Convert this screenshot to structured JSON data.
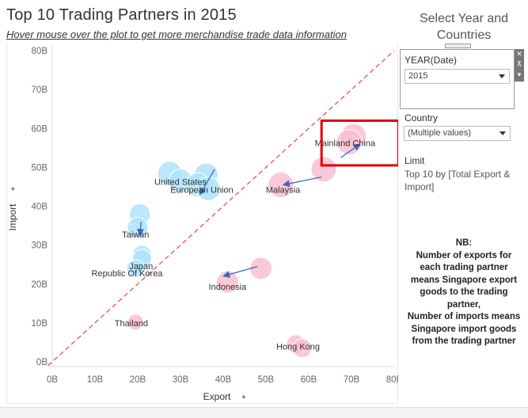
{
  "header": {
    "title": "Top 10 Trading Partners in 2015",
    "subtitle": "Hover mouse over the plot to get more  merchandise  trade data information"
  },
  "sidebar": {
    "title_line1": "Select Year and",
    "title_line2": "Countries",
    "year_filter": {
      "label": "YEAR(Date)",
      "value": "2015"
    },
    "country_filter": {
      "label": "Country",
      "value": "(Multiple values)"
    },
    "limit": {
      "title": "Limit",
      "text": "Top 10 by [Total Export & Import]"
    },
    "toolbar_icons": [
      "close-icon",
      "pin-icon",
      "menu-icon"
    ],
    "note": [
      "NB:",
      "Number of exports for each trading partner means Singapore export goods to the trading partner,",
      "Number of imports means Singapore import goods from the trading partner"
    ]
  },
  "colors": {
    "import_side": "#aee3fb",
    "export_side": "#f9bfd1",
    "arrow": "#3a66c4",
    "diagonal": "#e8514f",
    "highlight": "#dd0000"
  },
  "chart_data": {
    "type": "scatter",
    "xlabel": "Export",
    "ylabel": "Import",
    "xlim": [
      0,
      80
    ],
    "ylim": [
      0,
      80
    ],
    "ticks": [
      "0B",
      "10B",
      "20B",
      "30B",
      "40B",
      "50B",
      "60B",
      "70B",
      "80B"
    ],
    "tick_values": [
      0,
      10,
      20,
      30,
      40,
      50,
      60,
      70,
      80
    ],
    "grid": false,
    "diagonal_reference": true,
    "partners": [
      {
        "name": "Mainland China",
        "side": "export",
        "label_at": [
          68.5,
          55.5
        ],
        "points": [
          [
            70.5,
            58.0
          ],
          [
            69.5,
            56.5
          ]
        ],
        "radius": 16,
        "arrow": [
          [
            67.5,
            52.5
          ],
          [
            72.0,
            56.0
          ]
        ]
      },
      {
        "name": "Malaysia",
        "side": "export",
        "label_at": [
          54.0,
          43.5
        ],
        "points": [
          [
            63.5,
            49.5
          ],
          [
            53.5,
            45.5
          ]
        ],
        "radius": 16,
        "arrow": [
          [
            63.0,
            47.5
          ],
          [
            54.0,
            45.5
          ]
        ]
      },
      {
        "name": "United States",
        "side": "import",
        "label_at": [
          30.0,
          45.5
        ],
        "points": [
          [
            27.5,
            48.5
          ],
          [
            36.0,
            48.0
          ],
          [
            30.0,
            46.5
          ]
        ],
        "radius": 15,
        "arrow": [
          [
            38.0,
            49.5
          ],
          [
            34.5,
            43.0
          ]
        ]
      },
      {
        "name": "European Union",
        "side": "import",
        "label_at": [
          35.0,
          43.5
        ],
        "points": [
          [
            34.0,
            45.5
          ],
          [
            36.5,
            44.5
          ]
        ],
        "radius": 15,
        "arrow": null
      },
      {
        "name": "Taiwan",
        "side": "import",
        "label_at": [
          19.5,
          32.0
        ],
        "points": [
          [
            20.5,
            38.0
          ],
          [
            20.0,
            34.5
          ]
        ],
        "radius": 13,
        "arrow": [
          [
            20.8,
            36.0
          ],
          [
            20.5,
            32.5
          ]
        ]
      },
      {
        "name": "Japan",
        "side": "import",
        "label_at": [
          20.8,
          23.8
        ],
        "points": [
          [
            21.0,
            27.5
          ],
          [
            21.0,
            26.5
          ]
        ],
        "radius": 12,
        "arrow": null
      },
      {
        "name": "Republic Of Korea",
        "side": "import",
        "label_at": [
          17.5,
          22.0
        ],
        "points": [
          [
            19.5,
            24.0
          ]
        ],
        "radius": 11,
        "arrow": null
      },
      {
        "name": "Indonesia",
        "side": "export",
        "label_at": [
          41.0,
          18.5
        ],
        "points": [
          [
            48.8,
            24.0
          ],
          [
            41.0,
            20.5
          ]
        ],
        "radius": 14,
        "arrow": [
          [
            48.0,
            24.5
          ],
          [
            40.0,
            22.0
          ]
        ]
      },
      {
        "name": "Thailand",
        "side": "export",
        "label_at": [
          18.5,
          9.2
        ],
        "points": [
          [
            19.5,
            10.2
          ]
        ],
        "radius": 10,
        "arrow": null
      },
      {
        "name": "Hong Kong",
        "side": "export",
        "label_at": [
          57.5,
          3.2
        ],
        "points": [
          [
            57.0,
            4.5
          ],
          [
            58.5,
            3.5
          ]
        ],
        "radius": 12,
        "arrow": null
      }
    ],
    "highlight_box": {
      "from": [
        63.0,
        50.5
      ],
      "to": [
        81.0,
        62.0
      ]
    }
  }
}
